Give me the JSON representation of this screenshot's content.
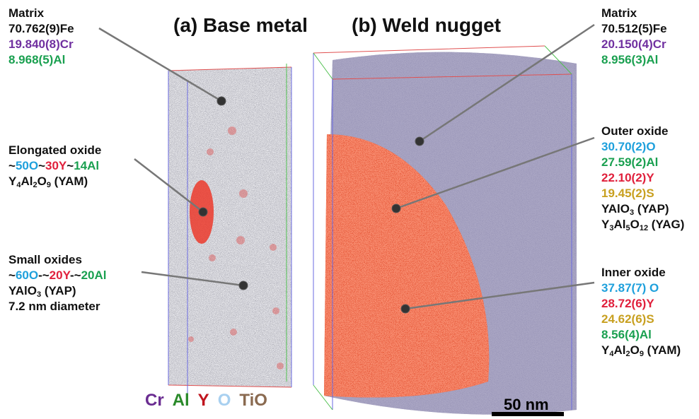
{
  "titles": [
    "(a) Base metal",
    "(b) Weld nugget"
  ],
  "blocks": [
    {
      "lines": [
        [
          {
            "text": "Matrix"
          }
        ],
        [
          {
            "text": "70.762(9)Fe"
          }
        ],
        [
          {
            "text": "19.840(8)Cr",
            "color": "#7030a0"
          }
        ],
        [
          {
            "text": "8.968(5)Al",
            "color": "#1aa050"
          }
        ]
      ]
    },
    {
      "lines": [
        [
          {
            "text": "Elongated oxide"
          }
        ],
        [
          {
            "text": "~"
          },
          {
            "text": "50O",
            "color": "#1ea0dc"
          },
          {
            "text": "~"
          },
          {
            "text": "30Y",
            "color": "#e0203c"
          },
          {
            "text": "~"
          },
          {
            "text": "14Al",
            "color": "#1aa050"
          }
        ],
        [
          {
            "text": "Y"
          },
          {
            "text": "4",
            "sub": true
          },
          {
            "text": "Al"
          },
          {
            "text": "2",
            "sub": true
          },
          {
            "text": "O"
          },
          {
            "text": "9",
            "sub": true
          },
          {
            "text": " (YAM)"
          }
        ]
      ]
    },
    {
      "lines": [
        [
          {
            "text": "Small oxides"
          }
        ],
        [
          {
            "text": "~"
          },
          {
            "text": "60O",
            "color": "#1ea0dc"
          },
          {
            "text": "-~"
          },
          {
            "text": "20Y",
            "color": "#e0203c"
          },
          {
            "text": "-~"
          },
          {
            "text": "20Al",
            "color": "#1aa050"
          }
        ],
        [
          {
            "text": "YAlO"
          },
          {
            "text": "3",
            "sub": true
          },
          {
            "text": " (YAP)"
          }
        ],
        [
          {
            "text": "7.2 nm diameter"
          }
        ]
      ]
    },
    {
      "lines": [
        [
          {
            "text": "Matrix"
          }
        ],
        [
          {
            "text": "70.512(5)Fe"
          }
        ],
        [
          {
            "text": "20.150(4)Cr",
            "color": "#7030a0"
          }
        ],
        [
          {
            "text": "8.956(3)Al",
            "color": "#1aa050"
          }
        ]
      ]
    },
    {
      "lines": [
        [
          {
            "text": "Outer oxide"
          }
        ],
        [
          {
            "text": "30.70(2)O",
            "color": "#1ea0dc"
          }
        ],
        [
          {
            "text": "27.59(2)Al",
            "color": "#1aa050"
          }
        ],
        [
          {
            "text": "22.10(2)Y",
            "color": "#e0203c"
          }
        ],
        [
          {
            "text": "19.45(2)S",
            "color": "#c8a020"
          }
        ],
        [
          {
            "text": "YAlO"
          },
          {
            "text": "3",
            "sub": true
          },
          {
            "text": " (YAP)"
          }
        ],
        [
          {
            "text": "Y"
          },
          {
            "text": "3",
            "sub": true
          },
          {
            "text": "Al"
          },
          {
            "text": "5",
            "sub": true
          },
          {
            "text": "O"
          },
          {
            "text": "12",
            "sub": true
          },
          {
            "text": " (YAG)"
          }
        ]
      ]
    },
    {
      "lines": [
        [
          {
            "text": "Inner oxide"
          }
        ],
        [
          {
            "text": "37.87(7) O",
            "color": "#1ea0dc"
          }
        ],
        [
          {
            "text": "28.72(6)Y",
            "color": "#e0203c"
          }
        ],
        [
          {
            "text": "24.62(6)S",
            "color": "#c8a020"
          }
        ],
        [
          {
            "text": "8.56(4)Al",
            "color": "#1aa050"
          }
        ],
        [
          {
            "text": "Y"
          },
          {
            "text": "4",
            "sub": true
          },
          {
            "text": "Al"
          },
          {
            "text": "2",
            "sub": true
          },
          {
            "text": "O"
          },
          {
            "text": "9",
            "sub": true
          },
          {
            "text": " (YAM)"
          }
        ]
      ]
    }
  ],
  "legend": [
    {
      "text": "Cr",
      "color": "#6a2c91"
    },
    {
      "text": "Al",
      "color": "#2a8a2a"
    },
    {
      "text": "Y",
      "color": "#c0141e"
    },
    {
      "text": "O",
      "color": "#a8d0f0"
    },
    {
      "text": "TiO",
      "color": "#8a6a50"
    }
  ],
  "scale_bar": "50 nm"
}
